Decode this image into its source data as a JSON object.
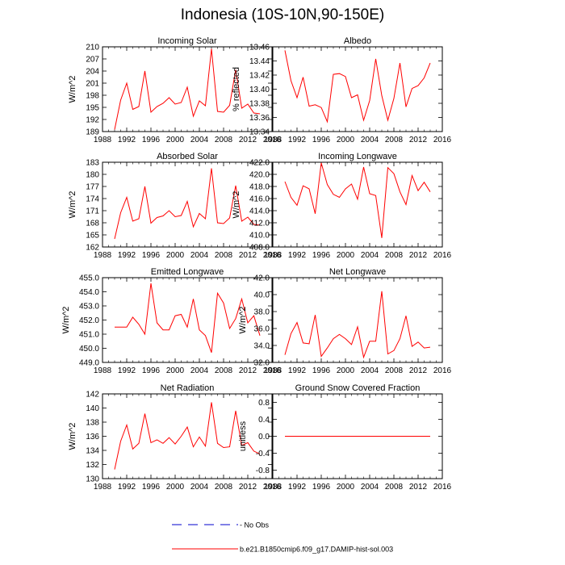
{
  "page_title": "Indonesia (10S-10N,90-150E)",
  "colors": {
    "series": "#ff0000",
    "obs": "#0000cc",
    "axis": "#000000"
  },
  "legend": [
    {
      "label": "No Obs",
      "color": "#0000cc",
      "style": "dashed"
    },
    {
      "label": "b.e21.B1850cmip6.f09_g17.DAMIP-hist-sol.003",
      "color": "#ff0000",
      "style": "solid"
    }
  ],
  "chart_data": [
    {
      "type": "line",
      "title": "Incoming Solar",
      "ylabel": "W/m^2",
      "xlim": [
        1988,
        2016
      ],
      "xticks": [
        1988,
        1992,
        1996,
        2000,
        2004,
        2008,
        2012,
        2016
      ],
      "ylim": [
        189,
        210
      ],
      "yticks": [
        189,
        192,
        195,
        198,
        201,
        204,
        207,
        210
      ],
      "ytick_labels": [
        "189",
        "192",
        "195",
        "198",
        "201",
        "204",
        "207",
        "210"
      ],
      "series": [
        {
          "x": [
            1990,
            1991,
            1992,
            1993,
            1994,
            1995,
            1996,
            1997,
            1998,
            1999,
            2000,
            2001,
            2002,
            2003,
            2004,
            2005,
            2006,
            2007,
            2008,
            2009,
            2010,
            2011,
            2012,
            2013,
            2014
          ],
          "y": [
            189.5,
            196.8,
            201.0,
            194.5,
            195.2,
            204.0,
            193.8,
            195.2,
            196.0,
            197.4,
            195.8,
            196.2,
            200.0,
            192.8,
            196.6,
            195.4,
            209.5,
            194.0,
            193.8,
            195.5,
            204.3,
            194.8,
            195.8,
            193.6,
            193.4
          ]
        }
      ]
    },
    {
      "type": "line",
      "title": "Albedo",
      "ylabel": "% reflected",
      "xlim": [
        1988,
        2016
      ],
      "xticks": [
        1988,
        1992,
        1996,
        2000,
        2004,
        2008,
        2012,
        2016
      ],
      "ylim": [
        13.34,
        13.46
      ],
      "yticks": [
        13.34,
        13.36,
        13.38,
        13.4,
        13.42,
        13.44,
        13.46
      ],
      "ytick_labels": [
        "13.34",
        "13.36",
        "13.38",
        "13.40",
        "13.42",
        "13.44",
        "13.46"
      ],
      "series": [
        {
          "x": [
            1990,
            1991,
            1992,
            1993,
            1994,
            1995,
            1996,
            1997,
            1998,
            1999,
            2000,
            2001,
            2002,
            2003,
            2004,
            2005,
            2006,
            2007,
            2008,
            2009,
            2010,
            2011,
            2012,
            2013,
            2014
          ],
          "y": [
            13.455,
            13.412,
            13.388,
            13.417,
            13.376,
            13.378,
            13.374,
            13.354,
            13.421,
            13.422,
            13.418,
            13.388,
            13.392,
            13.356,
            13.384,
            13.443,
            13.391,
            13.356,
            13.387,
            13.437,
            13.375,
            13.401,
            13.405,
            13.416,
            13.437
          ]
        }
      ]
    },
    {
      "type": "line",
      "title": "Absorbed Solar",
      "ylabel": "W/m^2",
      "xlim": [
        1988,
        2016
      ],
      "xticks": [
        1988,
        1992,
        1996,
        2000,
        2004,
        2008,
        2012,
        2016
      ],
      "ylim": [
        162,
        183
      ],
      "yticks": [
        162,
        165,
        168,
        171,
        174,
        177,
        180,
        183
      ],
      "ytick_labels": [
        "162",
        "165",
        "168",
        "171",
        "174",
        "177",
        "180",
        "183"
      ],
      "series": [
        {
          "x": [
            1990,
            1991,
            1992,
            1993,
            1994,
            1995,
            1996,
            1997,
            1998,
            1999,
            2000,
            2001,
            2002,
            2003,
            2004,
            2005,
            2006,
            2007,
            2008,
            2009,
            2010,
            2011,
            2012,
            2013,
            2014
          ],
          "y": [
            164.0,
            170.5,
            174.3,
            168.4,
            169.0,
            177.0,
            167.9,
            169.3,
            169.7,
            171.0,
            169.5,
            169.8,
            173.3,
            167.0,
            170.3,
            169.0,
            181.5,
            168.0,
            167.8,
            169.2,
            177.2,
            168.4,
            169.4,
            167.6,
            167.4
          ]
        }
      ]
    },
    {
      "type": "line",
      "title": "Incoming Longwave",
      "ylabel": "W/m^2",
      "xlim": [
        1988,
        2016
      ],
      "xticks": [
        1988,
        1992,
        1996,
        2000,
        2004,
        2008,
        2012,
        2016
      ],
      "ylim": [
        408,
        422
      ],
      "yticks": [
        408,
        410,
        412,
        414,
        416,
        418,
        420,
        422
      ],
      "ytick_labels": [
        "408.0",
        "410.0",
        "412.0",
        "414.0",
        "416.0",
        "418.0",
        "420.0",
        "422.0"
      ],
      "series": [
        {
          "x": [
            1990,
            1991,
            1992,
            1993,
            1994,
            1995,
            1996,
            1997,
            1998,
            1999,
            2000,
            2001,
            2002,
            2003,
            2004,
            2005,
            2006,
            2007,
            2008,
            2009,
            2010,
            2011,
            2012,
            2013,
            2014
          ],
          "y": [
            418.8,
            416.2,
            414.9,
            418.1,
            417.6,
            413.5,
            421.9,
            418.3,
            416.7,
            416.2,
            417.6,
            418.4,
            415.9,
            421.2,
            416.8,
            416.5,
            409.5,
            421.1,
            420.1,
            417.1,
            415.0,
            419.8,
            417.3,
            418.7,
            417.1
          ]
        }
      ]
    },
    {
      "type": "line",
      "title": "Emitted Longwave",
      "ylabel": "W/m^2",
      "xlim": [
        1988,
        2016
      ],
      "xticks": [
        1988,
        1992,
        1996,
        2000,
        2004,
        2008,
        2012,
        2016
      ],
      "ylim": [
        449,
        455
      ],
      "yticks": [
        449,
        450,
        451,
        452,
        453,
        454,
        455
      ],
      "ytick_labels": [
        "449.0",
        "450.0",
        "451.0",
        "452.0",
        "453.0",
        "454.0",
        "455.0"
      ],
      "series": [
        {
          "x": [
            1990,
            1991,
            1992,
            1993,
            1994,
            1995,
            1996,
            1997,
            1998,
            1999,
            2000,
            2001,
            2002,
            2003,
            2004,
            2005,
            2006,
            2007,
            2008,
            2009,
            2010,
            2011,
            2012,
            2013,
            2014
          ],
          "y": [
            451.5,
            451.5,
            451.5,
            452.2,
            451.7,
            451.0,
            454.6,
            451.8,
            451.3,
            451.3,
            452.3,
            452.4,
            451.5,
            453.5,
            451.3,
            450.9,
            449.7,
            453.9,
            453.2,
            451.4,
            452.1,
            453.5,
            451.8,
            452.3,
            450.9
          ]
        }
      ]
    },
    {
      "type": "line",
      "title": "Net Longwave",
      "ylabel": "W/m^2",
      "xlim": [
        1988,
        2016
      ],
      "xticks": [
        1988,
        1992,
        1996,
        2000,
        2004,
        2008,
        2012,
        2016
      ],
      "ylim": [
        32,
        42
      ],
      "yticks": [
        32,
        34,
        36,
        38,
        40,
        42
      ],
      "ytick_labels": [
        "32.0",
        "34.0",
        "36.0",
        "38.0",
        "40.0",
        "42.0"
      ],
      "series": [
        {
          "x": [
            1990,
            1991,
            1992,
            1993,
            1994,
            1995,
            1996,
            1997,
            1998,
            1999,
            2000,
            2001,
            2002,
            2003,
            2004,
            2005,
            2006,
            2007,
            2008,
            2009,
            2010,
            2011,
            2012,
            2013,
            2014
          ],
          "y": [
            32.9,
            35.4,
            36.7,
            34.3,
            34.2,
            37.6,
            32.7,
            33.7,
            34.8,
            35.3,
            34.8,
            34.1,
            36.2,
            32.6,
            34.5,
            34.5,
            40.4,
            33.0,
            33.4,
            34.8,
            37.5,
            33.9,
            34.4,
            33.7,
            33.8
          ]
        }
      ]
    },
    {
      "type": "line",
      "title": "Net Radiation",
      "ylabel": "W/m^2",
      "xlim": [
        1988,
        2016
      ],
      "xticks": [
        1988,
        1992,
        1996,
        2000,
        2004,
        2008,
        2012,
        2016
      ],
      "ylim": [
        130,
        142
      ],
      "yticks": [
        130,
        132,
        134,
        136,
        138,
        140,
        142
      ],
      "ytick_labels": [
        "130",
        "132",
        "134",
        "136",
        "138",
        "140",
        "142"
      ],
      "series": [
        {
          "x": [
            1990,
            1991,
            1992,
            1993,
            1994,
            1995,
            1996,
            1997,
            1998,
            1999,
            2000,
            2001,
            2002,
            2003,
            2004,
            2005,
            2006,
            2007,
            2008,
            2009,
            2010,
            2011,
            2012,
            2013,
            2014
          ],
          "y": [
            131.3,
            135.3,
            137.6,
            134.2,
            135.0,
            139.2,
            135.1,
            135.5,
            135.0,
            135.8,
            134.9,
            136.0,
            137.3,
            134.5,
            135.9,
            134.6,
            140.8,
            135.0,
            134.4,
            134.5,
            139.6,
            134.7,
            135.1,
            133.9,
            133.5
          ]
        }
      ]
    },
    {
      "type": "line",
      "title": "Ground Snow Covered Fraction",
      "ylabel": "unitless",
      "xlim": [
        1988,
        2016
      ],
      "xticks": [
        1988,
        1992,
        1996,
        2000,
        2004,
        2008,
        2012,
        2016
      ],
      "ylim": [
        -1.0,
        1.0
      ],
      "yticks": [
        -0.8,
        -0.4,
        0.0,
        0.4,
        0.8
      ],
      "ytick_labels": [
        "-0.8",
        "-0.4",
        "0.0",
        "0.4",
        "0.8"
      ],
      "series": [
        {
          "x": [
            1990,
            1991,
            1992,
            1993,
            1994,
            1995,
            1996,
            1997,
            1998,
            1999,
            2000,
            2001,
            2002,
            2003,
            2004,
            2005,
            2006,
            2007,
            2008,
            2009,
            2010,
            2011,
            2012,
            2013,
            2014
          ],
          "y": [
            0,
            0,
            0,
            0,
            0,
            0,
            0,
            0,
            0,
            0,
            0,
            0,
            0,
            0,
            0,
            0,
            0,
            0,
            0,
            0,
            0,
            0,
            0,
            0,
            0
          ]
        }
      ]
    }
  ]
}
